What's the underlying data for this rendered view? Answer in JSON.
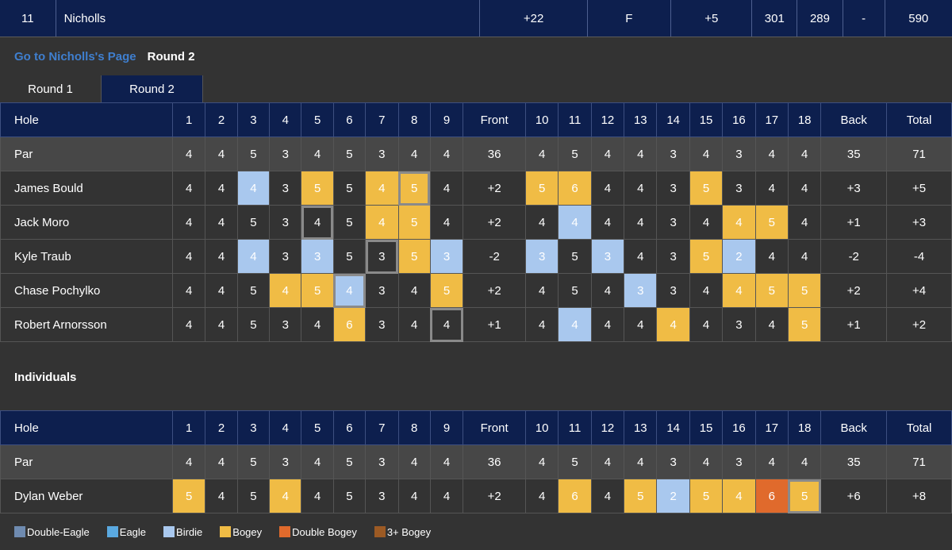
{
  "team": {
    "rank": "11",
    "name": "Nicholls",
    "to_par": "+22",
    "thru": "F",
    "today": "+5",
    "r1": "301",
    "r2": "289",
    "r3": "-",
    "total": "590"
  },
  "subhead": {
    "link": "Go to Nicholls's Page",
    "round": "Round 2"
  },
  "tabs": [
    {
      "label": "Round 1",
      "active": false
    },
    {
      "label": "Round 2",
      "active": true
    }
  ],
  "header": [
    "Hole",
    "1",
    "2",
    "3",
    "4",
    "5",
    "6",
    "7",
    "8",
    "9",
    "Front",
    "10",
    "11",
    "12",
    "13",
    "14",
    "15",
    "16",
    "17",
    "18",
    "Back",
    "Total"
  ],
  "par": [
    "Par",
    "4",
    "4",
    "5",
    "3",
    "4",
    "5",
    "3",
    "4",
    "4",
    "36",
    "4",
    "5",
    "4",
    "4",
    "3",
    "4",
    "3",
    "4",
    "4",
    "35",
    "71"
  ],
  "players": [
    {
      "name": "James Bould",
      "cells": [
        "4",
        "4",
        "4",
        "3",
        "5",
        "5",
        "4",
        "5",
        "4",
        "+2",
        "5",
        "6",
        "4",
        "4",
        "3",
        "5",
        "3",
        "4",
        "4",
        "+3",
        "+5"
      ],
      "classes": [
        "",
        "",
        "birdie",
        "",
        "bogey",
        "",
        "bogey",
        "bogey hl",
        "",
        "",
        "bogey",
        "bogey",
        "",
        "",
        "",
        "bogey",
        "",
        "",
        "",
        "",
        ""
      ]
    },
    {
      "name": "Jack Moro",
      "cells": [
        "4",
        "4",
        "5",
        "3",
        "4",
        "5",
        "4",
        "5",
        "4",
        "+2",
        "4",
        "4",
        "4",
        "4",
        "3",
        "4",
        "4",
        "5",
        "4",
        "+1",
        "+3"
      ],
      "classes": [
        "",
        "",
        "",
        "",
        "hl",
        "",
        "bogey",
        "bogey",
        "",
        "",
        "",
        "birdie",
        "",
        "",
        "",
        "",
        "bogey",
        "bogey",
        "",
        "",
        ""
      ]
    },
    {
      "name": "Kyle Traub",
      "cells": [
        "4",
        "4",
        "4",
        "3",
        "3",
        "5",
        "3",
        "5",
        "3",
        "-2",
        "3",
        "5",
        "3",
        "4",
        "3",
        "5",
        "2",
        "4",
        "4",
        "-2",
        "-4"
      ],
      "classes": [
        "",
        "",
        "birdie",
        "",
        "birdie",
        "",
        "hl",
        "bogey",
        "birdie",
        "",
        "birdie",
        "",
        "birdie",
        "",
        "",
        "bogey",
        "birdie",
        "",
        "",
        "",
        ""
      ]
    },
    {
      "name": "Chase Pochylko",
      "cells": [
        "4",
        "4",
        "5",
        "4",
        "5",
        "4",
        "3",
        "4",
        "5",
        "+2",
        "4",
        "5",
        "4",
        "3",
        "3",
        "4",
        "4",
        "5",
        "5",
        "+2",
        "+4"
      ],
      "classes": [
        "",
        "",
        "",
        "bogey",
        "bogey",
        "birdie hl",
        "",
        "",
        "bogey",
        "",
        "",
        "",
        "",
        "birdie",
        "",
        "",
        "bogey",
        "bogey",
        "bogey",
        "",
        ""
      ]
    },
    {
      "name": "Robert Arnorsson",
      "cells": [
        "4",
        "4",
        "5",
        "3",
        "4",
        "6",
        "3",
        "4",
        "4",
        "+1",
        "4",
        "4",
        "4",
        "4",
        "4",
        "4",
        "3",
        "4",
        "5",
        "+1",
        "+2"
      ],
      "classes": [
        "",
        "",
        "",
        "",
        "",
        "bogey",
        "",
        "",
        "hl",
        "",
        "",
        "birdie",
        "",
        "",
        "bogey",
        "",
        "",
        "",
        "bogey",
        "",
        ""
      ]
    }
  ],
  "individuals": {
    "title": "Individuals",
    "players": [
      {
        "name": "Dylan Weber",
        "cells": [
          "5",
          "4",
          "5",
          "4",
          "4",
          "5",
          "3",
          "4",
          "4",
          "+2",
          "4",
          "6",
          "4",
          "5",
          "2",
          "5",
          "4",
          "6",
          "5",
          "+6",
          "+8"
        ],
        "classes": [
          "bogey",
          "",
          "",
          "bogey",
          "",
          "",
          "",
          "",
          "",
          "",
          "",
          "bogey",
          "",
          "bogey",
          "birdie",
          "bogey",
          "bogey",
          "dbogey",
          "bogey hl",
          "",
          ""
        ]
      }
    ]
  },
  "legend": [
    {
      "label": "Double-Eagle",
      "color": "#6f8bb0"
    },
    {
      "label": "Eagle",
      "color": "#5aa9e0"
    },
    {
      "label": "Birdie",
      "color": "#a9c8ee"
    },
    {
      "label": "Bogey",
      "color": "#f0bc45"
    },
    {
      "label": "Double Bogey",
      "color": "#e06a2c"
    },
    {
      "label": "3+ Bogey",
      "color": "#9c5a24"
    }
  ]
}
